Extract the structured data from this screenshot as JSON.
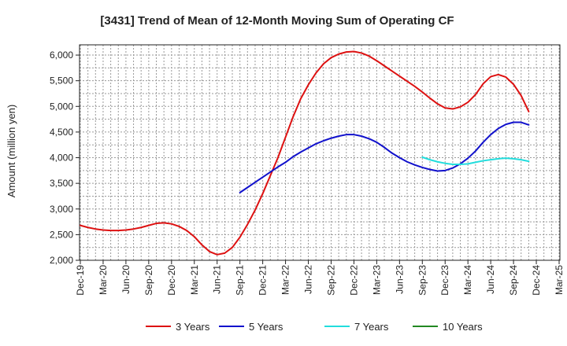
{
  "chart_data": {
    "type": "line",
    "title": "[3431]  Trend of Mean of 12-Month Moving Sum of Operating CF",
    "xlabel": "",
    "ylabel": "Amount (million yen)",
    "ylim": [
      2000,
      6200
    ],
    "yticks": [
      2000,
      2500,
      3000,
      3500,
      4000,
      4500,
      5000,
      5500,
      6000
    ],
    "ytick_labels": [
      "2,000",
      "2,500",
      "3,000",
      "3,500",
      "4,000",
      "4,500",
      "5,000",
      "5,500",
      "6,000"
    ],
    "x_tick_labels": [
      "Dec-19",
      "Mar-20",
      "Jun-20",
      "Sep-20",
      "Dec-20",
      "Mar-21",
      "Jun-21",
      "Sep-21",
      "Dec-21",
      "Mar-22",
      "Jun-22",
      "Sep-22",
      "Dec-22",
      "Mar-23",
      "Jun-23",
      "Sep-23",
      "Dec-23",
      "Mar-24",
      "Jun-24",
      "Sep-24",
      "Dec-24",
      "Mar-25"
    ],
    "grid": true,
    "legend_position": "bottom",
    "series": [
      {
        "name": "3 Years",
        "color": "#dd1111",
        "start_month_index": 0,
        "values": [
          2680,
          2640,
          2610,
          2590,
          2580,
          2580,
          2590,
          2610,
          2640,
          2680,
          2720,
          2730,
          2710,
          2660,
          2580,
          2460,
          2300,
          2170,
          2110,
          2140,
          2250,
          2450,
          2700,
          2980,
          3300,
          3650,
          4000,
          4400,
          4800,
          5150,
          5420,
          5650,
          5830,
          5950,
          6020,
          6060,
          6070,
          6040,
          5980,
          5890,
          5790,
          5690,
          5590,
          5490,
          5390,
          5280,
          5160,
          5050,
          4970,
          4950,
          4990,
          5080,
          5230,
          5440,
          5580,
          5620,
          5570,
          5430,
          5210,
          4900
        ]
      },
      {
        "name": "5 Years",
        "color": "#1111cc",
        "start_month_index": 21,
        "values": [
          3320,
          3420,
          3520,
          3620,
          3720,
          3820,
          3910,
          4020,
          4110,
          4190,
          4270,
          4330,
          4380,
          4420,
          4450,
          4450,
          4420,
          4370,
          4300,
          4200,
          4090,
          4000,
          3920,
          3860,
          3810,
          3770,
          3740,
          3750,
          3800,
          3880,
          3990,
          4130,
          4300,
          4450,
          4570,
          4650,
          4690,
          4690,
          4640
        ]
      },
      {
        "name": "7 Years",
        "color": "#22dddd",
        "start_month_index": 45,
        "values": [
          4010,
          3960,
          3920,
          3890,
          3870,
          3870,
          3880,
          3910,
          3940,
          3960,
          3980,
          3990,
          3980,
          3960,
          3930
        ]
      },
      {
        "name": "10 Years",
        "color": "#228822",
        "start_month_index": 0,
        "values": []
      }
    ]
  }
}
